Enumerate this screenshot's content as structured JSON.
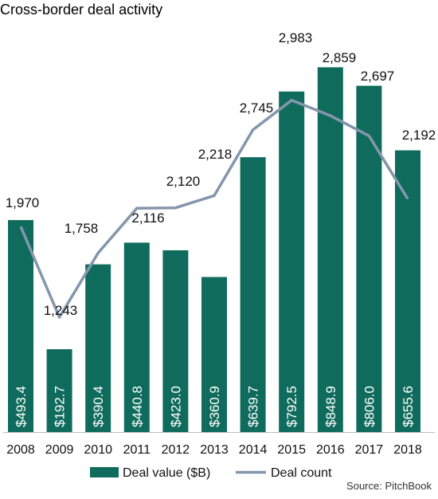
{
  "chart_data": {
    "type": "bar",
    "title": "Cross-border deal activity",
    "categories": [
      "2008",
      "2009",
      "2010",
      "2011",
      "2012",
      "2013",
      "2014",
      "2015",
      "2016",
      "2017",
      "2018"
    ],
    "series": [
      {
        "name": "Deal value ($B)",
        "type": "bar",
        "values": [
          493.4,
          192.7,
          390.4,
          440.8,
          423.0,
          360.9,
          639.7,
          792.5,
          848.9,
          806.0,
          655.6
        ],
        "labels": [
          "$493.4",
          "$192.7",
          "$390.4",
          "$440.8",
          "$423.0",
          "$360.9",
          "$639.7",
          "$792.5",
          "$848.9",
          "$806.0",
          "$655.6"
        ]
      },
      {
        "name": "Deal count",
        "type": "line",
        "values": [
          1970,
          1243,
          1758,
          2116,
          2120,
          2218,
          2745,
          2983,
          2859,
          2697,
          2192
        ],
        "labels": [
          "1,970",
          "1,243",
          "1,758",
          "2,116",
          "2,120",
          "2,218",
          "2,745",
          "2,983",
          "2,859",
          "2,697",
          "2,192"
        ]
      }
    ],
    "colors": {
      "bar": "#0f6b5c",
      "line": "#8496ab"
    },
    "legend_position": "bottom",
    "grid": false,
    "source": "Source: PitchBook"
  }
}
